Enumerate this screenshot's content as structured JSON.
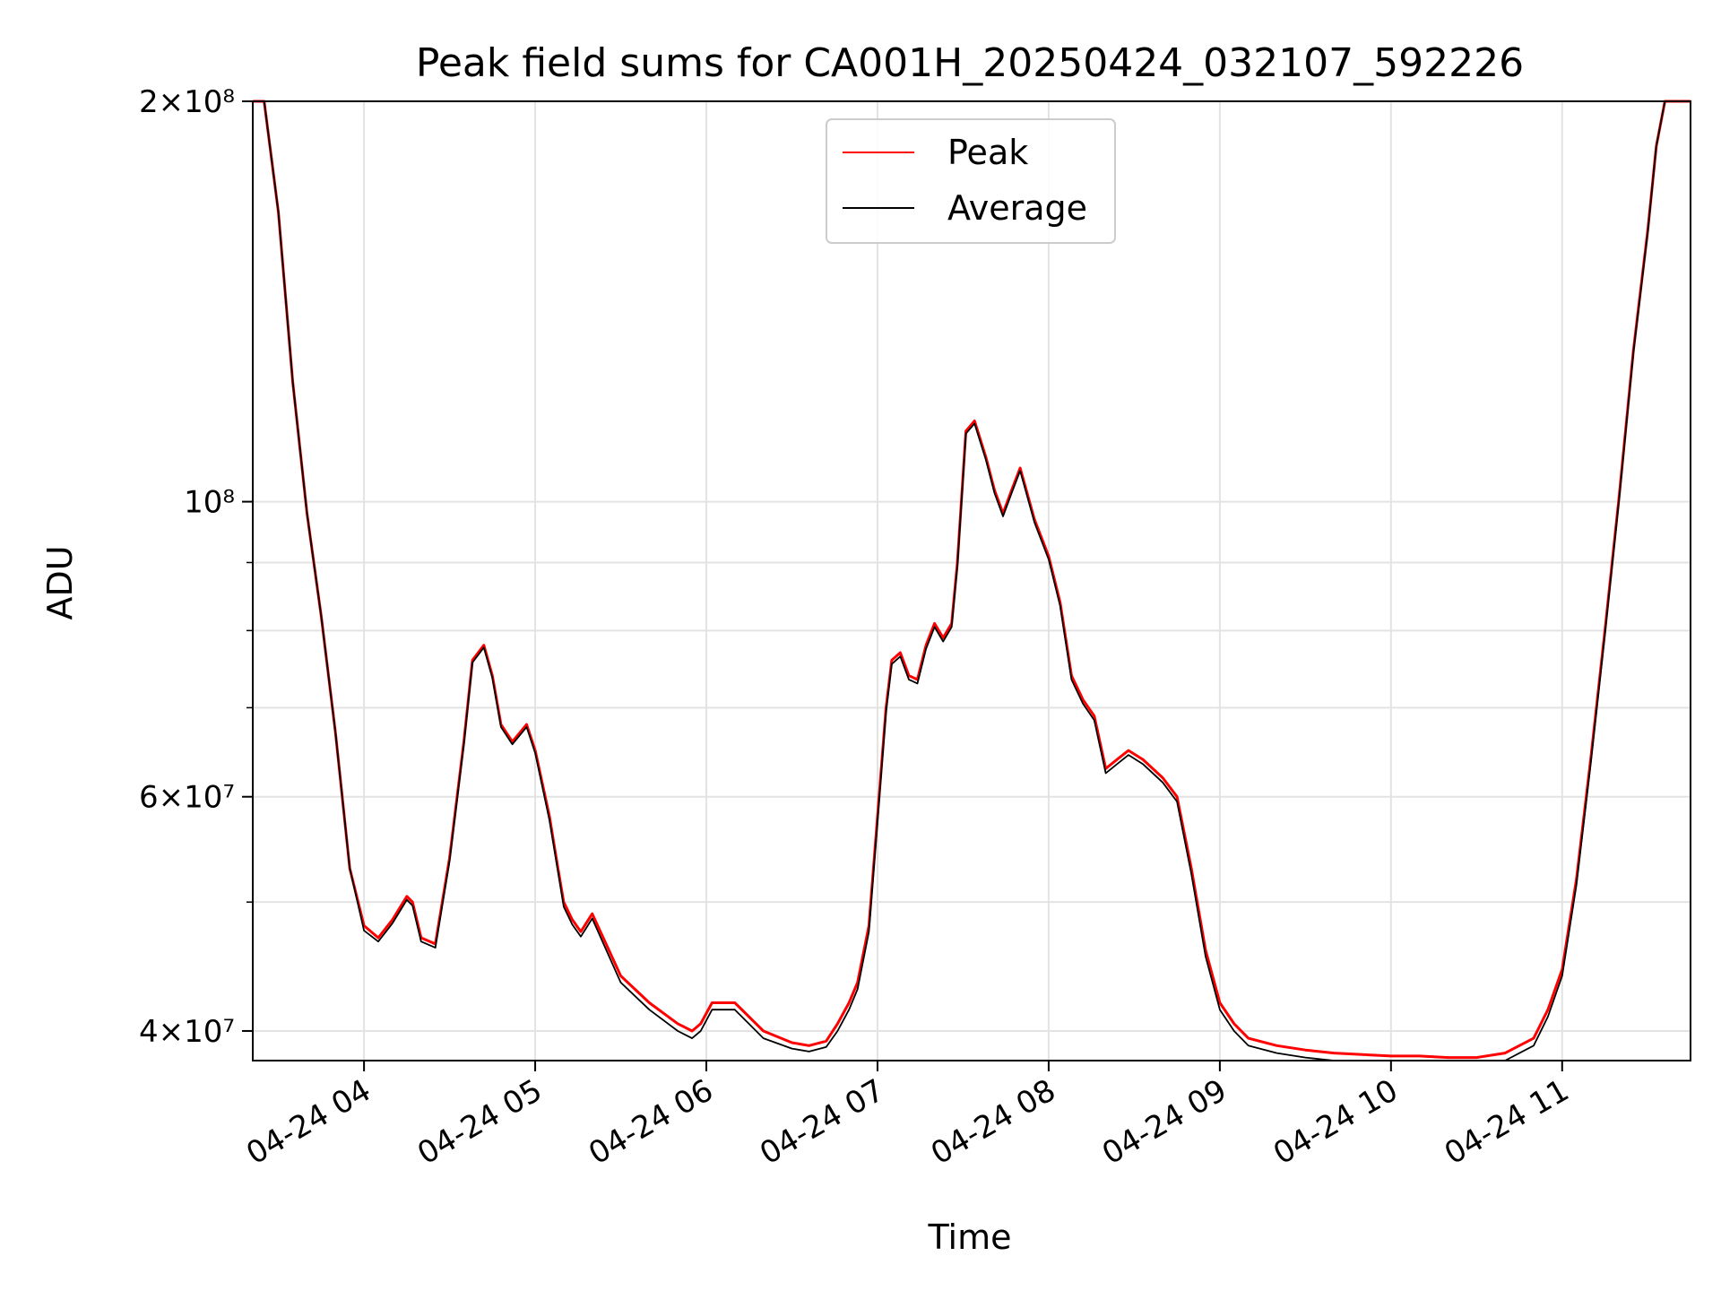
{
  "chart_data": {
    "type": "line",
    "title": "Peak field sums for CA001H_20250424_032107_592226",
    "xlabel": "Time",
    "ylabel": "ADU",
    "y_scale": "log",
    "ylim": [
      38000000,
      200000000
    ],
    "x_range": [
      "2025-04-24 03:21",
      "2025-04-24 11:45"
    ],
    "x_tick_labels": [
      "04-24 04",
      "04-24 05",
      "04-24 06",
      "04-24 07",
      "04-24 08",
      "04-24 09",
      "04-24 10",
      "04-24 11"
    ],
    "x_ticks": [
      "2025-04-24 04:00",
      "2025-04-24 05:00",
      "2025-04-24 06:00",
      "2025-04-24 07:00",
      "2025-04-24 08:00",
      "2025-04-24 09:00",
      "2025-04-24 10:00",
      "2025-04-24 11:00"
    ],
    "y_ticks": [
      {
        "value": 40000000,
        "label": "4×10⁷"
      },
      {
        "value": 60000000,
        "label": "6×10⁷"
      },
      {
        "value": 100000000,
        "label": "10⁸"
      },
      {
        "value": 200000000,
        "label": "2×10⁸"
      }
    ],
    "y_minor_gridlines": [
      50000000,
      70000000,
      80000000,
      90000000
    ],
    "grid": true,
    "legend_position": "top-center",
    "x": [
      "2025-04-24 03:21",
      "2025-04-24 03:25",
      "2025-04-24 03:30",
      "2025-04-24 03:35",
      "2025-04-24 03:40",
      "2025-04-24 03:45",
      "2025-04-24 03:50",
      "2025-04-24 03:55",
      "2025-04-24 04:00",
      "2025-04-24 04:05",
      "2025-04-24 04:10",
      "2025-04-24 04:15",
      "2025-04-24 04:17",
      "2025-04-24 04:20",
      "2025-04-24 04:25",
      "2025-04-24 04:30",
      "2025-04-24 04:35",
      "2025-04-24 04:38",
      "2025-04-24 04:42",
      "2025-04-24 04:45",
      "2025-04-24 04:48",
      "2025-04-24 04:52",
      "2025-04-24 04:57",
      "2025-04-24 05:00",
      "2025-04-24 05:05",
      "2025-04-24 05:08",
      "2025-04-24 05:10",
      "2025-04-24 05:13",
      "2025-04-24 05:16",
      "2025-04-24 05:20",
      "2025-04-24 05:30",
      "2025-04-24 05:40",
      "2025-04-24 05:50",
      "2025-04-24 05:55",
      "2025-04-24 05:58",
      "2025-04-24 06:02",
      "2025-04-24 06:06",
      "2025-04-24 06:10",
      "2025-04-24 06:20",
      "2025-04-24 06:30",
      "2025-04-24 06:36",
      "2025-04-24 06:42",
      "2025-04-24 06:46",
      "2025-04-24 06:50",
      "2025-04-24 06:53",
      "2025-04-24 06:57",
      "2025-04-24 07:00",
      "2025-04-24 07:03",
      "2025-04-24 07:05",
      "2025-04-24 07:08",
      "2025-04-24 07:11",
      "2025-04-24 07:14",
      "2025-04-24 07:17",
      "2025-04-24 07:20",
      "2025-04-24 07:23",
      "2025-04-24 07:26",
      "2025-04-24 07:28",
      "2025-04-24 07:31",
      "2025-04-24 07:34",
      "2025-04-24 07:38",
      "2025-04-24 07:41",
      "2025-04-24 07:44",
      "2025-04-24 07:47",
      "2025-04-24 07:50",
      "2025-04-24 07:55",
      "2025-04-24 08:00",
      "2025-04-24 08:04",
      "2025-04-24 08:08",
      "2025-04-24 08:12",
      "2025-04-24 08:16",
      "2025-04-24 08:20",
      "2025-04-24 08:24",
      "2025-04-24 08:28",
      "2025-04-24 08:33",
      "2025-04-24 08:40",
      "2025-04-24 08:45",
      "2025-04-24 08:50",
      "2025-04-24 08:55",
      "2025-04-24 09:00",
      "2025-04-24 09:05",
      "2025-04-24 09:10",
      "2025-04-24 09:20",
      "2025-04-24 09:30",
      "2025-04-24 09:40",
      "2025-04-24 09:50",
      "2025-04-24 10:00",
      "2025-04-24 10:10",
      "2025-04-24 10:20",
      "2025-04-24 10:30",
      "2025-04-24 10:40",
      "2025-04-24 10:50",
      "2025-04-24 10:55",
      "2025-04-24 11:00",
      "2025-04-24 11:05",
      "2025-04-24 11:10",
      "2025-04-24 11:15",
      "2025-04-24 11:20",
      "2025-04-24 11:25",
      "2025-04-24 11:30",
      "2025-04-24 11:33",
      "2025-04-24 11:36",
      "2025-04-24 11:45"
    ],
    "series": [
      {
        "name": "Peak",
        "color": "#ff0000",
        "values": [
          200000000,
          200000000,
          165000000,
          123000000,
          98000000,
          82000000,
          67000000,
          53000000,
          48000000,
          47000000,
          48500000,
          50500000,
          50000000,
          47000000,
          46500000,
          54000000,
          66000000,
          76000000,
          78000000,
          74000000,
          68000000,
          66000000,
          68000000,
          65000000,
          58000000,
          53000000,
          50000000,
          48500000,
          47500000,
          49000000,
          44000000,
          42000000,
          40500000,
          40000000,
          40500000,
          42000000,
          42000000,
          42000000,
          40000000,
          39200000,
          39000000,
          39300000,
          40500000,
          42000000,
          43500000,
          48000000,
          58000000,
          70000000,
          76000000,
          77000000,
          74000000,
          73500000,
          78000000,
          81000000,
          79000000,
          81000000,
          90000000,
          113000000,
          115000000,
          108000000,
          102000000,
          98000000,
          102000000,
          106000000,
          97000000,
          91000000,
          84000000,
          74000000,
          71000000,
          69000000,
          63000000,
          64000000,
          65000000,
          64000000,
          62000000,
          60000000,
          53000000,
          46000000,
          42000000,
          40500000,
          39500000,
          39000000,
          38700000,
          38500000,
          38400000,
          38300000,
          38300000,
          38200000,
          38200000,
          38500000,
          39500000,
          41500000,
          44500000,
          52000000,
          64000000,
          80000000,
          101000000,
          130000000,
          160000000,
          185000000,
          200000000,
          200000000
        ]
      },
      {
        "name": "Average",
        "color": "#000000",
        "values": [
          200000000,
          200000000,
          165000000,
          123000000,
          98000000,
          82000000,
          67000000,
          53000000,
          47600000,
          46700000,
          48200000,
          50200000,
          49700000,
          46700000,
          46200000,
          53700000,
          65700000,
          75700000,
          77700000,
          73700000,
          67700000,
          65700000,
          67700000,
          64700000,
          57600000,
          52700000,
          49600000,
          48100000,
          47100000,
          48600000,
          43500000,
          41500000,
          40000000,
          39500000,
          40000000,
          41500000,
          41500000,
          41500000,
          39500000,
          38800000,
          38600000,
          38900000,
          40000000,
          41500000,
          43000000,
          47500000,
          57500000,
          69500000,
          75500000,
          76500000,
          73500000,
          73000000,
          77500000,
          80500000,
          78500000,
          80500000,
          89500000,
          112500000,
          114500000,
          107500000,
          101500000,
          97500000,
          101500000,
          105500000,
          96500000,
          90500000,
          83500000,
          73500000,
          70500000,
          68500000,
          62500000,
          63500000,
          64500000,
          63500000,
          61500000,
          59500000,
          52500000,
          45500000,
          41500000,
          40000000,
          39000000,
          38500000,
          38200000,
          38000000,
          37900000,
          37800000,
          37800000,
          37700000,
          37700000,
          38000000,
          39000000,
          41000000,
          44000000,
          51500000,
          63500000,
          79500000,
          100500000,
          129500000,
          159500000,
          185000000,
          200000000,
          200000000
        ]
      }
    ]
  }
}
